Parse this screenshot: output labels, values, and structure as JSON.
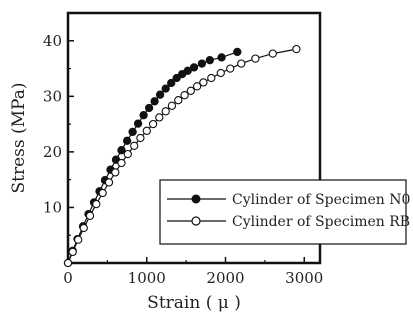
{
  "chart_data": {
    "type": "line",
    "xlabel": "Strain ( μ )",
    "ylabel": "Stress (MPa)",
    "xlim": [
      0,
      3200
    ],
    "ylim": [
      0,
      45
    ],
    "x_ticks": [
      0,
      1000,
      2000,
      3000
    ],
    "y_ticks": [
      10,
      20,
      30,
      40
    ],
    "y_tick_origin_label": "0",
    "grid": false,
    "legend_position": "bottom-right",
    "series": [
      {
        "name": "Cylinder of Specimen N0",
        "marker": "filled-circle",
        "color": "#111111",
        "x": [
          0,
          60,
          120,
          190,
          260,
          330,
          400,
          470,
          540,
          610,
          680,
          750,
          820,
          890,
          960,
          1030,
          1100,
          1170,
          1240,
          1310,
          1380,
          1450,
          1520,
          1600,
          1700,
          1800,
          1950,
          2150
        ],
        "y": [
          0,
          2.2,
          4.3,
          6.6,
          8.8,
          10.9,
          12.9,
          14.9,
          16.8,
          18.6,
          20.3,
          22.0,
          23.6,
          25.1,
          26.6,
          27.9,
          29.1,
          30.3,
          31.4,
          32.4,
          33.3,
          34.0,
          34.6,
          35.2,
          35.9,
          36.5,
          37.0,
          38.0
        ]
      },
      {
        "name": "Cylinder of Specimen RB",
        "marker": "open-circle",
        "color": "#111111",
        "x": [
          0,
          60,
          130,
          200,
          280,
          360,
          440,
          520,
          600,
          680,
          760,
          840,
          920,
          1000,
          1080,
          1160,
          1240,
          1320,
          1400,
          1480,
          1560,
          1640,
          1720,
          1820,
          1940,
          2060,
          2200,
          2380,
          2600,
          2900
        ],
        "y": [
          0,
          2.0,
          4.2,
          6.3,
          8.5,
          10.6,
          12.6,
          14.5,
          16.3,
          18.0,
          19.6,
          21.1,
          22.5,
          23.8,
          25.0,
          26.2,
          27.3,
          28.3,
          29.3,
          30.2,
          31.0,
          31.8,
          32.5,
          33.3,
          34.2,
          35.0,
          35.9,
          36.8,
          37.7,
          38.5
        ]
      }
    ]
  }
}
